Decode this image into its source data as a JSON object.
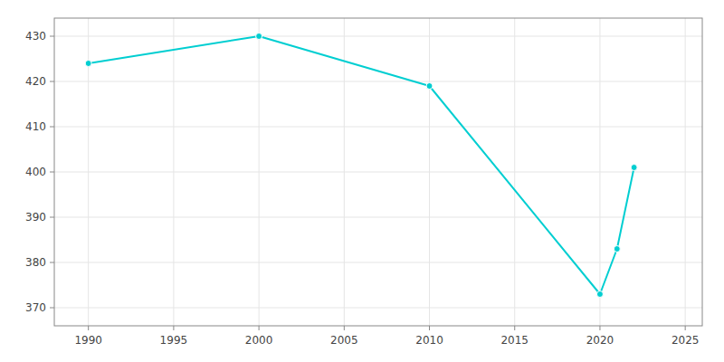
{
  "chart_data": {
    "type": "line",
    "x": [
      1990,
      2000,
      2010,
      2020,
      2021,
      2022
    ],
    "values": [
      424,
      430,
      419,
      373,
      383,
      401
    ],
    "color": "#00CED1",
    "marker": "circle",
    "xlim": [
      1988,
      2026
    ],
    "ylim": [
      366,
      434
    ],
    "xticks": [
      1990,
      1995,
      2000,
      2005,
      2010,
      2015,
      2020,
      2025
    ],
    "yticks": [
      370,
      380,
      390,
      400,
      410,
      420,
      430
    ],
    "grid": true
  }
}
